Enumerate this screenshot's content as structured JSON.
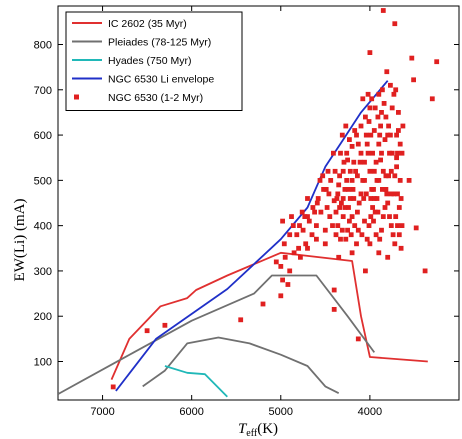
{
  "chart_data": {
    "type": "line",
    "xlabel": "T",
    "xlabel_sub": "eff",
    "xlabel_unit": "(K)",
    "ylabel": "EW(Li) (mA)",
    "xlim": [
      7500,
      3000
    ],
    "ylim": [
      15,
      885
    ],
    "x_ticks": [
      7000,
      6000,
      5000,
      4000
    ],
    "y_ticks": [
      100,
      200,
      300,
      400,
      500,
      600,
      700,
      800
    ],
    "grid": false,
    "legend_position": "top-left",
    "series": [
      {
        "name": "IC 2602 (35 Myr)",
        "kind": "line",
        "color": "#e03030",
        "points": [
          [
            6900,
            60
          ],
          [
            6700,
            150
          ],
          [
            6350,
            222
          ],
          [
            6050,
            240
          ],
          [
            5950,
            258
          ],
          [
            5600,
            290
          ],
          [
            5000,
            340
          ],
          [
            4200,
            322
          ],
          [
            4100,
            200
          ],
          [
            4000,
            110
          ],
          [
            3350,
            100
          ]
        ]
      },
      {
        "name": "Pleiades (78-125 Myr)",
        "kind": "line",
        "color": "#707070",
        "points": [
          [
            7500,
            28
          ],
          [
            6650,
            120
          ],
          [
            6000,
            190
          ],
          [
            5300,
            250
          ],
          [
            5100,
            290
          ],
          [
            4600,
            290
          ],
          [
            4250,
            200
          ],
          [
            3950,
            120
          ]
        ]
      },
      {
        "name": "Pleiades (78-125 Myr) lower",
        "kind": "line",
        "color": "#707070",
        "points": [
          [
            6550,
            45
          ],
          [
            6300,
            80
          ],
          [
            6050,
            140
          ],
          [
            5700,
            153
          ],
          [
            5350,
            140
          ],
          [
            5000,
            115
          ],
          [
            4700,
            90
          ],
          [
            4500,
            45
          ],
          [
            4350,
            30
          ]
        ]
      },
      {
        "name": "Hyades (750 Myr)",
        "kind": "line",
        "color": "#20b8b8",
        "points": [
          [
            6300,
            90
          ],
          [
            6050,
            75
          ],
          [
            5850,
            72
          ],
          [
            5600,
            22
          ]
        ]
      },
      {
        "name": "NGC 6530 Li envelope",
        "kind": "line",
        "color": "#2030c8",
        "points": [
          [
            6850,
            35
          ],
          [
            6400,
            150
          ],
          [
            5600,
            260
          ],
          [
            5000,
            370
          ],
          [
            4700,
            440
          ],
          [
            4500,
            530
          ],
          [
            4300,
            590
          ],
          [
            4100,
            650
          ],
          [
            3800,
            720
          ]
        ]
      },
      {
        "name": "NGC 6530 (1-2 Myr)",
        "kind": "scatter",
        "color": "#e02020",
        "points": [
          [
            6880,
            44
          ],
          [
            6500,
            168
          ],
          [
            6300,
            180
          ],
          [
            5450,
            192
          ],
          [
            5000,
            245
          ],
          [
            5200,
            227
          ],
          [
            4980,
            410
          ],
          [
            4700,
            420
          ],
          [
            4400,
            215
          ],
          [
            4400,
            258
          ],
          [
            4130,
            150
          ],
          [
            3900,
            690
          ],
          [
            4000,
            782
          ],
          [
            3720,
            846
          ],
          [
            3530,
            770
          ],
          [
            3250,
            762
          ],
          [
            3380,
            300
          ],
          [
            3300,
            680
          ],
          [
            3510,
            722
          ],
          [
            3480,
            395
          ],
          [
            3560,
            500
          ],
          [
            3850,
            875
          ],
          [
            4200,
            340
          ],
          [
            4050,
            300
          ],
          [
            4350,
            330
          ],
          [
            4500,
            390
          ],
          [
            4450,
            420
          ],
          [
            4400,
            455
          ],
          [
            4350,
            490
          ],
          [
            4300,
            520
          ],
          [
            4250,
            545
          ],
          [
            4200,
            575
          ],
          [
            4150,
            600
          ],
          [
            4100,
            620
          ],
          [
            4050,
            640
          ],
          [
            4000,
            660
          ],
          [
            3950,
            610
          ],
          [
            3900,
            580
          ],
          [
            3880,
            545
          ],
          [
            3850,
            520
          ],
          [
            3820,
            480
          ],
          [
            3800,
            450
          ],
          [
            3780,
            420
          ],
          [
            3760,
            400
          ],
          [
            3740,
            380
          ],
          [
            3720,
            360
          ],
          [
            3700,
            530
          ],
          [
            3700,
            600
          ],
          [
            3680,
            650
          ],
          [
            3690,
            560
          ],
          [
            3670,
            440
          ],
          [
            3660,
            500
          ],
          [
            3640,
            400
          ],
          [
            3650,
            350
          ],
          [
            3760,
            520
          ],
          [
            3780,
            560
          ],
          [
            3800,
            600
          ],
          [
            3820,
            640
          ],
          [
            3840,
            670
          ],
          [
            3860,
            700
          ],
          [
            3880,
            620
          ],
          [
            3900,
            500
          ],
          [
            3920,
            460
          ],
          [
            3940,
            430
          ],
          [
            3960,
            410
          ],
          [
            3980,
            480
          ],
          [
            4000,
            520
          ],
          [
            4020,
            560
          ],
          [
            4040,
            600
          ],
          [
            4060,
            540
          ],
          [
            4080,
            500
          ],
          [
            4100,
            470
          ],
          [
            4120,
            450
          ],
          [
            4140,
            430
          ],
          [
            4160,
            520
          ],
          [
            4180,
            540
          ],
          [
            4200,
            500
          ],
          [
            4220,
            460
          ],
          [
            4240,
            440
          ],
          [
            4260,
            560
          ],
          [
            4280,
            480
          ],
          [
            4300,
            420
          ],
          [
            4320,
            450
          ],
          [
            4340,
            510
          ],
          [
            4360,
            470
          ],
          [
            4380,
            430
          ],
          [
            4420,
            400
          ],
          [
            4460,
            470
          ],
          [
            4480,
            440
          ],
          [
            4520,
            480
          ],
          [
            4550,
            430
          ],
          [
            4580,
            460
          ],
          [
            4600,
            400
          ],
          [
            4620,
            430
          ],
          [
            4650,
            380
          ],
          [
            4680,
            410
          ],
          [
            4720,
            360
          ],
          [
            4750,
            390
          ],
          [
            4800,
            350
          ],
          [
            4850,
            340
          ],
          [
            4900,
            380
          ],
          [
            4950,
            330
          ],
          [
            5000,
            310
          ],
          [
            4960,
            360
          ],
          [
            4900,
            300
          ],
          [
            4920,
            270
          ],
          [
            4980,
            280
          ],
          [
            5050,
            320
          ],
          [
            4130,
            580
          ],
          [
            4170,
            610
          ],
          [
            4230,
            590
          ],
          [
            4270,
            620
          ],
          [
            4310,
            600
          ],
          [
            4030,
            580
          ],
          [
            3970,
            560
          ],
          [
            3930,
            540
          ],
          [
            3990,
            600
          ],
          [
            4010,
            630
          ],
          [
            3870,
            560
          ],
          [
            3830,
            590
          ],
          [
            3790,
            620
          ],
          [
            3750,
            660
          ],
          [
            3730,
            690
          ],
          [
            3710,
            700
          ],
          [
            3770,
            710
          ],
          [
            3810,
            740
          ],
          [
            3870,
            650
          ],
          [
            3950,
            520
          ],
          [
            4070,
            460
          ],
          [
            4110,
            540
          ],
          [
            4190,
            480
          ],
          [
            4290,
            540
          ],
          [
            4330,
            560
          ],
          [
            4390,
            520
          ],
          [
            4410,
            560
          ],
          [
            4440,
            500
          ],
          [
            4470,
            520
          ],
          [
            4490,
            480
          ],
          [
            4530,
            510
          ],
          [
            4560,
            500
          ],
          [
            4590,
            450
          ],
          [
            4640,
            440
          ],
          [
            4700,
            460
          ],
          [
            4730,
            420
          ],
          [
            4760,
            430
          ],
          [
            4790,
            400
          ],
          [
            4820,
            380
          ],
          [
            4860,
            400
          ],
          [
            4880,
            420
          ],
          [
            3650,
            460
          ],
          [
            3640,
            560
          ],
          [
            3630,
            620
          ],
          [
            3660,
            580
          ],
          [
            3690,
            470
          ],
          [
            3710,
            420
          ],
          [
            3730,
            470
          ],
          [
            3750,
            560
          ],
          [
            3770,
            600
          ],
          [
            3790,
            510
          ],
          [
            3810,
            470
          ],
          [
            3830,
            440
          ],
          [
            3850,
            420
          ],
          [
            3870,
            390
          ],
          [
            3890,
            370
          ],
          [
            3910,
            430
          ],
          [
            3930,
            380
          ],
          [
            3950,
            460
          ],
          [
            3970,
            440
          ],
          [
            3990,
            420
          ],
          [
            4010,
            400
          ],
          [
            4030,
            370
          ],
          [
            4060,
            410
          ],
          [
            4090,
            380
          ],
          [
            4130,
            390
          ],
          [
            4150,
            360
          ],
          [
            4170,
            400
          ],
          [
            4210,
            380
          ],
          [
            4230,
            410
          ],
          [
            4250,
            390
          ],
          [
            4270,
            370
          ],
          [
            4310,
            390
          ],
          [
            4330,
            370
          ],
          [
            4360,
            400
          ],
          [
            4380,
            380
          ],
          [
            4020,
            690
          ],
          [
            3980,
            680
          ],
          [
            3940,
            660
          ],
          [
            3910,
            640
          ],
          [
            3890,
            600
          ],
          [
            4080,
            680
          ],
          [
            4100,
            560
          ],
          [
            4140,
            510
          ],
          [
            4180,
            460
          ],
          [
            4220,
            520
          ],
          [
            4240,
            480
          ],
          [
            4260,
            500
          ],
          [
            4280,
            440
          ],
          [
            4300,
            460
          ],
          [
            4340,
            440
          ],
          [
            4370,
            460
          ],
          [
            4060,
            500
          ],
          [
            4040,
            470
          ],
          [
            3990,
            460
          ],
          [
            3960,
            480
          ],
          [
            3920,
            500
          ],
          [
            3860,
            480
          ],
          [
            3820,
            510
          ],
          [
            3760,
            470
          ],
          [
            3720,
            510
          ],
          [
            3700,
            550
          ],
          [
            3680,
            610
          ],
          [
            3690,
            400
          ],
          [
            3670,
            380
          ],
          [
            4200,
            420
          ],
          [
            4000,
            360
          ],
          [
            3900,
            340
          ],
          [
            3800,
            330
          ],
          [
            4500,
            360
          ],
          [
            4600,
            370
          ],
          [
            4700,
            350
          ],
          [
            4780,
            330
          ]
        ]
      }
    ]
  }
}
